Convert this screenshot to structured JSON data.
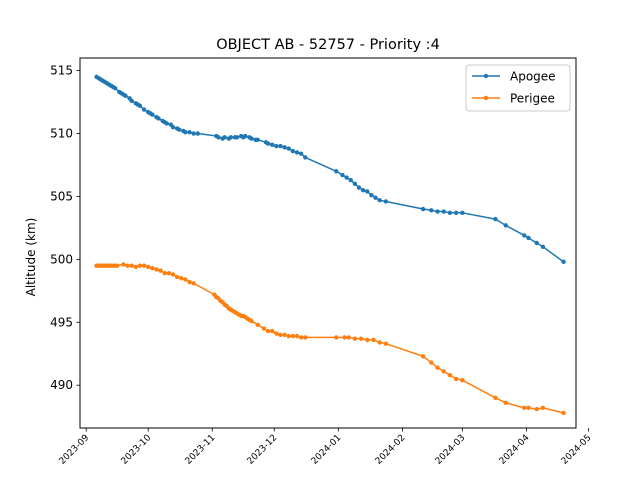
{
  "chart_data": {
    "type": "line",
    "title": "OBJECT AB - 52757 - Priority :4",
    "xlabel": "",
    "ylabel": "Altitude (km)",
    "x_axis_type": "date",
    "xlim": [
      "2023-08-29",
      "2024-04-25"
    ],
    "ylim": [
      486.6,
      516.0
    ],
    "x_ticks": [
      "2023-09",
      "2023-10",
      "2023-11",
      "2023-12",
      "2024-01",
      "2024-02",
      "2024-03",
      "2024-04",
      "2024-05"
    ],
    "y_ticks": [
      490,
      495,
      500,
      505,
      510,
      515
    ],
    "grid": false,
    "legend_position": "top-right",
    "series": [
      {
        "name": "Apogee",
        "color": "#1f77b4",
        "marker": "circle",
        "points": [
          [
            "2023-09-06",
            514.5
          ],
          [
            "2023-09-07",
            514.4
          ],
          [
            "2023-09-08",
            514.3
          ],
          [
            "2023-09-09",
            514.2
          ],
          [
            "2023-09-10",
            514.1
          ],
          [
            "2023-09-11",
            514.0
          ],
          [
            "2023-09-12",
            513.9
          ],
          [
            "2023-09-13",
            513.8
          ],
          [
            "2023-09-14",
            513.7
          ],
          [
            "2023-09-15",
            513.6
          ],
          [
            "2023-09-17",
            513.3
          ],
          [
            "2023-09-18",
            513.2
          ],
          [
            "2023-09-19",
            513.1
          ],
          [
            "2023-09-20",
            513.0
          ],
          [
            "2023-09-22",
            512.8
          ],
          [
            "2023-09-23",
            512.6
          ],
          [
            "2023-09-25",
            512.4
          ],
          [
            "2023-09-26",
            512.3
          ],
          [
            "2023-09-27",
            512.2
          ],
          [
            "2023-09-29",
            511.9
          ],
          [
            "2023-10-01",
            511.7
          ],
          [
            "2023-10-02",
            511.6
          ],
          [
            "2023-10-03",
            511.5
          ],
          [
            "2023-10-05",
            511.3
          ],
          [
            "2023-10-06",
            511.2
          ],
          [
            "2023-10-08",
            511.0
          ],
          [
            "2023-10-09",
            510.9
          ],
          [
            "2023-10-10",
            510.8
          ],
          [
            "2023-10-12",
            510.7
          ],
          [
            "2023-10-13",
            510.5
          ],
          [
            "2023-10-15",
            510.4
          ],
          [
            "2023-10-16",
            510.3
          ],
          [
            "2023-10-18",
            510.2
          ],
          [
            "2023-10-19",
            510.1
          ],
          [
            "2023-10-21",
            510.1
          ],
          [
            "2023-10-23",
            510.0
          ],
          [
            "2023-10-25",
            510.0
          ],
          [
            "2023-11-03",
            509.8
          ],
          [
            "2023-11-04",
            509.7
          ],
          [
            "2023-11-06",
            509.6
          ],
          [
            "2023-11-07",
            509.7
          ],
          [
            "2023-11-09",
            509.6
          ],
          [
            "2023-11-10",
            509.7
          ],
          [
            "2023-11-12",
            509.7
          ],
          [
            "2023-11-13",
            509.7
          ],
          [
            "2023-11-15",
            509.8
          ],
          [
            "2023-11-16",
            509.7
          ],
          [
            "2023-11-17",
            509.8
          ],
          [
            "2023-11-19",
            509.7
          ],
          [
            "2023-11-20",
            509.6
          ],
          [
            "2023-11-22",
            509.5
          ],
          [
            "2023-11-23",
            509.5
          ],
          [
            "2023-11-27",
            509.3
          ],
          [
            "2023-11-28",
            509.2
          ],
          [
            "2023-11-30",
            509.1
          ],
          [
            "2023-12-02",
            509.0
          ],
          [
            "2023-12-04",
            509.0
          ],
          [
            "2023-12-06",
            508.9
          ],
          [
            "2023-12-08",
            508.8
          ],
          [
            "2023-12-10",
            508.6
          ],
          [
            "2023-12-12",
            508.5
          ],
          [
            "2023-12-14",
            508.4
          ],
          [
            "2023-12-16",
            508.1
          ],
          [
            "2023-12-31",
            507.0
          ],
          [
            "2024-01-03",
            506.7
          ],
          [
            "2024-01-05",
            506.5
          ],
          [
            "2024-01-07",
            506.3
          ],
          [
            "2024-01-09",
            506.0
          ],
          [
            "2024-01-11",
            505.7
          ],
          [
            "2024-01-13",
            505.5
          ],
          [
            "2024-01-15",
            505.4
          ],
          [
            "2024-01-17",
            505.1
          ],
          [
            "2024-01-19",
            504.9
          ],
          [
            "2024-01-21",
            504.7
          ],
          [
            "2024-01-24",
            504.6
          ],
          [
            "2024-02-11",
            504.0
          ],
          [
            "2024-02-15",
            503.9
          ],
          [
            "2024-02-18",
            503.8
          ],
          [
            "2024-02-21",
            503.8
          ],
          [
            "2024-02-24",
            503.7
          ],
          [
            "2024-02-27",
            503.7
          ],
          [
            "2024-03-01",
            503.7
          ],
          [
            "2024-03-17",
            503.2
          ],
          [
            "2024-03-22",
            502.7
          ],
          [
            "2024-03-31",
            501.9
          ],
          [
            "2024-04-02",
            501.7
          ],
          [
            "2024-04-06",
            501.3
          ],
          [
            "2024-04-09",
            501.0
          ],
          [
            "2024-04-19",
            499.8
          ]
        ]
      },
      {
        "name": "Perigee",
        "color": "#ff7f0e",
        "marker": "circle",
        "points": [
          [
            "2023-09-06",
            499.5
          ],
          [
            "2023-09-07",
            499.5
          ],
          [
            "2023-09-08",
            499.5
          ],
          [
            "2023-09-09",
            499.5
          ],
          [
            "2023-09-10",
            499.5
          ],
          [
            "2023-09-11",
            499.5
          ],
          [
            "2023-09-12",
            499.5
          ],
          [
            "2023-09-13",
            499.5
          ],
          [
            "2023-09-14",
            499.5
          ],
          [
            "2023-09-15",
            499.5
          ],
          [
            "2023-09-16",
            499.5
          ],
          [
            "2023-09-19",
            499.6
          ],
          [
            "2023-09-21",
            499.5
          ],
          [
            "2023-09-23",
            499.5
          ],
          [
            "2023-09-25",
            499.4
          ],
          [
            "2023-09-27",
            499.5
          ],
          [
            "2023-09-29",
            499.5
          ],
          [
            "2023-10-01",
            499.4
          ],
          [
            "2023-10-03",
            499.3
          ],
          [
            "2023-10-05",
            499.2
          ],
          [
            "2023-10-07",
            499.1
          ],
          [
            "2023-10-09",
            498.9
          ],
          [
            "2023-10-11",
            498.9
          ],
          [
            "2023-10-13",
            498.8
          ],
          [
            "2023-10-15",
            498.6
          ],
          [
            "2023-10-17",
            498.5
          ],
          [
            "2023-10-19",
            498.4
          ],
          [
            "2023-10-21",
            498.2
          ],
          [
            "2023-10-23",
            498.1
          ],
          [
            "2023-11-02",
            497.2
          ],
          [
            "2023-11-03",
            497.0
          ],
          [
            "2023-11-04",
            496.9
          ],
          [
            "2023-11-05",
            496.7
          ],
          [
            "2023-11-06",
            496.6
          ],
          [
            "2023-11-07",
            496.4
          ],
          [
            "2023-11-08",
            496.3
          ],
          [
            "2023-11-09",
            496.1
          ],
          [
            "2023-11-10",
            496.0
          ],
          [
            "2023-11-11",
            495.9
          ],
          [
            "2023-11-12",
            495.8
          ],
          [
            "2023-11-13",
            495.7
          ],
          [
            "2023-11-14",
            495.6
          ],
          [
            "2023-11-15",
            495.5
          ],
          [
            "2023-11-16",
            495.5
          ],
          [
            "2023-11-17",
            495.4
          ],
          [
            "2023-11-18",
            495.3
          ],
          [
            "2023-11-19",
            495.2
          ],
          [
            "2023-11-20",
            495.1
          ],
          [
            "2023-11-23",
            494.8
          ],
          [
            "2023-11-26",
            494.5
          ],
          [
            "2023-11-28",
            494.3
          ],
          [
            "2023-11-30",
            494.3
          ],
          [
            "2023-12-02",
            494.1
          ],
          [
            "2023-12-04",
            494.0
          ],
          [
            "2023-12-06",
            494.0
          ],
          [
            "2023-12-08",
            493.9
          ],
          [
            "2023-12-10",
            493.9
          ],
          [
            "2023-12-12",
            493.9
          ],
          [
            "2023-12-14",
            493.8
          ],
          [
            "2023-12-16",
            493.8
          ],
          [
            "2023-12-31",
            493.8
          ],
          [
            "2024-01-04",
            493.8
          ],
          [
            "2024-01-06",
            493.8
          ],
          [
            "2024-01-09",
            493.7
          ],
          [
            "2024-01-12",
            493.7
          ],
          [
            "2024-01-15",
            493.6
          ],
          [
            "2024-01-18",
            493.6
          ],
          [
            "2024-01-21",
            493.4
          ],
          [
            "2024-01-24",
            493.3
          ],
          [
            "2024-02-11",
            492.3
          ],
          [
            "2024-02-15",
            491.8
          ],
          [
            "2024-02-18",
            491.4
          ],
          [
            "2024-02-21",
            491.1
          ],
          [
            "2024-02-24",
            490.8
          ],
          [
            "2024-02-27",
            490.5
          ],
          [
            "2024-03-01",
            490.4
          ],
          [
            "2024-03-17",
            489.0
          ],
          [
            "2024-03-22",
            488.6
          ],
          [
            "2024-03-31",
            488.2
          ],
          [
            "2024-04-02",
            488.2
          ],
          [
            "2024-04-06",
            488.1
          ],
          [
            "2024-04-09",
            488.2
          ],
          [
            "2024-04-19",
            487.8
          ]
        ]
      }
    ]
  }
}
